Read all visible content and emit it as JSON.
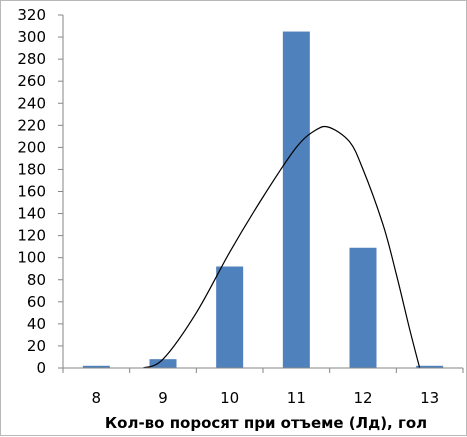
{
  "chart_data": {
    "type": "bar",
    "title": "",
    "xlabel": "Кол-во поросят при отъеме (Лд), гол",
    "ylabel": "",
    "categories": [
      "8",
      "9",
      "10",
      "11",
      "12",
      "13"
    ],
    "values": [
      2,
      8,
      92,
      305,
      109,
      2
    ],
    "ylim": [
      0,
      320
    ],
    "yticks": [
      0,
      20,
      40,
      60,
      80,
      100,
      120,
      140,
      160,
      180,
      200,
      220,
      240,
      260,
      280,
      300,
      320
    ],
    "grid": false,
    "legend": "none",
    "bar_color": "#4f81bd",
    "curve": {
      "type": "line",
      "smooth": true,
      "color": "#000000",
      "x": [
        8.7,
        9.0,
        9.5,
        10.0,
        10.5,
        11.0,
        11.3,
        11.5,
        11.8,
        12.0,
        12.3,
        12.5,
        12.7,
        12.85
      ],
      "y": [
        0,
        8,
        50,
        105,
        155,
        200,
        216,
        218,
        205,
        180,
        130,
        85,
        35,
        0
      ]
    }
  }
}
